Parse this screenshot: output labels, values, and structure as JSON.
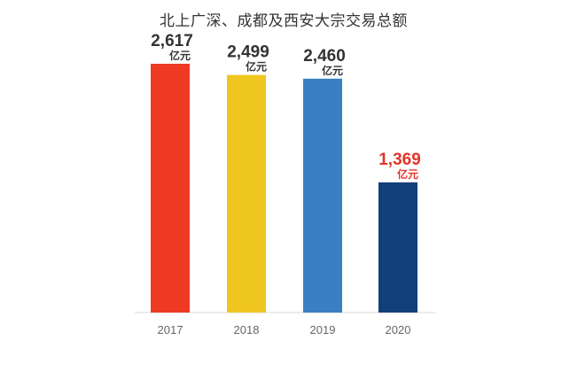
{
  "chart_data": {
    "type": "bar",
    "title": "北上广深、成都及西安大宗交易总额",
    "categories": [
      "2017",
      "2018",
      "2019",
      "2020"
    ],
    "values": [
      2617,
      2499,
      2460,
      1369
    ],
    "unit": "亿元",
    "value_labels": [
      "2,617",
      "2,499",
      "2,460",
      "1,369"
    ],
    "colors": [
      "#ee3a22",
      "#f0c620",
      "#3a7fc1",
      "#103f7a"
    ],
    "label_colors": [
      "#333333",
      "#333333",
      "#333333",
      "#e2342a"
    ],
    "xlabel": "",
    "ylabel": "",
    "ylim": [
      0,
      2617
    ],
    "grid": false,
    "legend": "none"
  }
}
